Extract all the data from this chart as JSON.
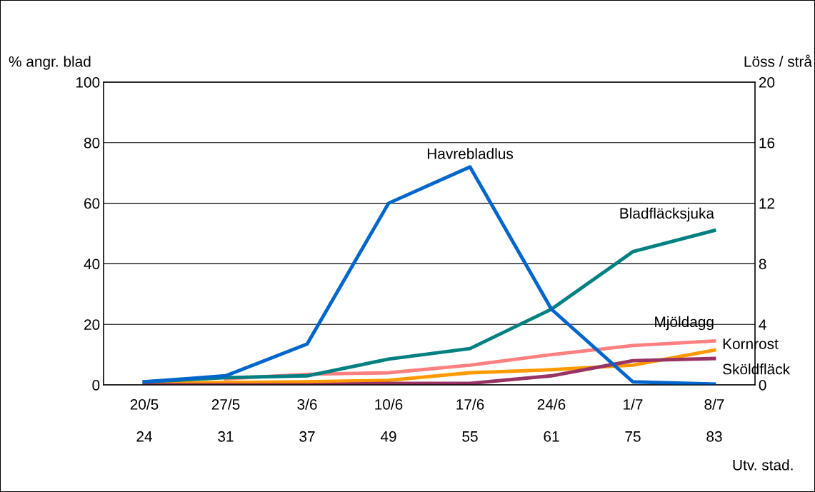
{
  "chart_data": {
    "type": "line",
    "ylabel": "% angr. blad",
    "y2label": "Löss / strå",
    "xlabel": "Utv. stad.",
    "categories": [
      "20/5\n\n24",
      "27/5\n\n31",
      "3/6\n\n37",
      "10/6\n\n49",
      "17/6\n\n55",
      "24/6\n\n61",
      "1/7\n\n75",
      "8/7\n\n83"
    ],
    "series": [
      {
        "name": "Mjöldagg",
        "color": "#ff8080",
        "values": [
          null,
          2,
          3.5,
          4,
          6.5,
          10,
          13,
          14.5
        ]
      },
      {
        "name": "Kornrost",
        "color": "#ff9900",
        "values": [
          0.5,
          0.8,
          1,
          1.5,
          4,
          5,
          6.5,
          11.5
        ]
      },
      {
        "name": "Sköldfläck",
        "color": "#993366",
        "values": [
          0,
          0,
          0,
          0.5,
          0.5,
          3,
          8,
          8.7
        ]
      },
      {
        "name": "Bladfläcksjuka",
        "color": "#008080",
        "values": [
          1,
          2.4,
          3,
          8.5,
          12,
          25,
          44,
          51
        ]
      },
      {
        "name": "Havrebladlus",
        "color": "#0066cc",
        "axis": "y2",
        "values": [
          0.2,
          0.6,
          2.7,
          12,
          14.4,
          5,
          0.2,
          0.05
        ]
      }
    ],
    "ylim": [
      0,
      100
    ],
    "yticks": [
      0,
      20,
      40,
      60,
      80,
      100
    ],
    "y2lim": [
      0,
      20
    ],
    "y2ticks": [
      0,
      4,
      8,
      12,
      16,
      20
    ],
    "grid": "y",
    "legend": false,
    "marker": "none",
    "line_style": "solid"
  }
}
